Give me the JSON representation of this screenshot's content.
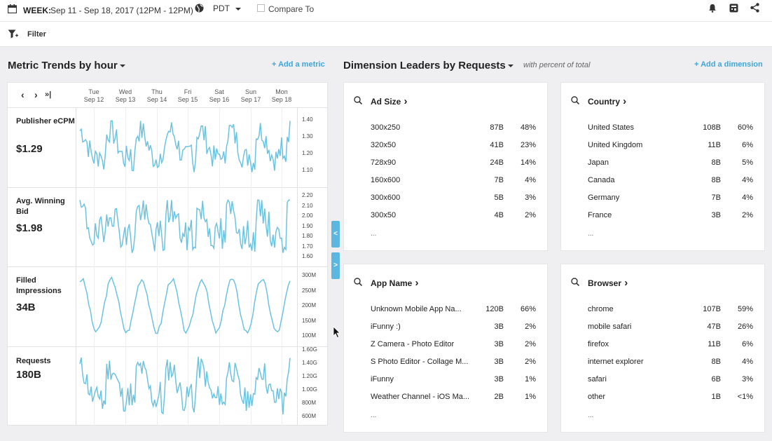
{
  "topbar": {
    "week_label": "WEEK:",
    "week_range": "Sep 11 - Sep 18, 2017 (12PM - 12PM)",
    "timezone": "PDT",
    "compare_label": "Compare To"
  },
  "filterbar": {
    "label": "Filter"
  },
  "metrics": {
    "title": "Metric Trends by",
    "granularity": "hour",
    "add_label": "+ Add a metric",
    "days": [
      {
        "dow": "Tue",
        "date": "Sep 12"
      },
      {
        "dow": "Wed",
        "date": "Sep 13"
      },
      {
        "dow": "Thu",
        "date": "Sep 14"
      },
      {
        "dow": "Fri",
        "date": "Sep 15"
      },
      {
        "dow": "Sat",
        "date": "Sep 16"
      },
      {
        "dow": "Sun",
        "date": "Sep 17"
      },
      {
        "dow": "Mon",
        "date": "Sep 18"
      }
    ],
    "nav": {
      "prev": "‹",
      "next": "›",
      "last": "»|"
    },
    "rows": [
      {
        "name": "Publisher eCPM",
        "value": "$1.29",
        "ticks": [
          "1.40",
          "1.30",
          "1.20",
          "1.10"
        ]
      },
      {
        "name": "Avg. Winning Bid",
        "value": "$1.98",
        "ticks": [
          "2.20",
          "2.10",
          "2.00",
          "1.90",
          "1.80",
          "1.70",
          "1.60"
        ]
      },
      {
        "name": "Filled Impressions",
        "value": "34B",
        "ticks": [
          "300M",
          "250M",
          "200M",
          "150M",
          "100M"
        ]
      },
      {
        "name": "Requests",
        "value": "180B",
        "ticks": [
          "1.60G",
          "1.40G",
          "1.20G",
          "1.00G",
          "800M",
          "600M"
        ]
      }
    ]
  },
  "dimensions": {
    "title": "Dimension Leaders by",
    "measure": "Requests",
    "subtitle": "with percent of total",
    "add_label": "+ Add a dimension",
    "more": "...",
    "cards": [
      {
        "title": "Ad Size",
        "rows": [
          {
            "name": "300x250",
            "count": "87B",
            "pct": "48%"
          },
          {
            "name": "320x50",
            "count": "41B",
            "pct": "23%"
          },
          {
            "name": "728x90",
            "count": "24B",
            "pct": "14%"
          },
          {
            "name": "160x600",
            "count": "7B",
            "pct": "4%"
          },
          {
            "name": "300x600",
            "count": "5B",
            "pct": "3%"
          },
          {
            "name": "300x50",
            "count": "4B",
            "pct": "2%"
          }
        ]
      },
      {
        "title": "Country",
        "rows": [
          {
            "name": "United States",
            "count": "108B",
            "pct": "60%"
          },
          {
            "name": "United Kingdom",
            "count": "11B",
            "pct": "6%"
          },
          {
            "name": "Japan",
            "count": "8B",
            "pct": "5%"
          },
          {
            "name": "Canada",
            "count": "8B",
            "pct": "4%"
          },
          {
            "name": "Germany",
            "count": "7B",
            "pct": "4%"
          },
          {
            "name": "France",
            "count": "3B",
            "pct": "2%"
          }
        ]
      },
      {
        "title": "App Name",
        "rows": [
          {
            "name": "Unknown Mobile App Na...",
            "count": "120B",
            "pct": "66%"
          },
          {
            "name": "iFunny :)",
            "count": "3B",
            "pct": "2%"
          },
          {
            "name": "Z Camera - Photo Editor",
            "count": "3B",
            "pct": "2%"
          },
          {
            "name": "S Photo Editor - Collage M...",
            "count": "3B",
            "pct": "2%"
          },
          {
            "name": "iFunny",
            "count": "3B",
            "pct": "1%"
          },
          {
            "name": "Weather Channel - iOS Ma...",
            "count": "2B",
            "pct": "1%"
          }
        ]
      },
      {
        "title": "Browser",
        "rows": [
          {
            "name": "chrome",
            "count": "107B",
            "pct": "59%"
          },
          {
            "name": "mobile safari",
            "count": "47B",
            "pct": "26%"
          },
          {
            "name": "firefox",
            "count": "11B",
            "pct": "6%"
          },
          {
            "name": "internet explorer",
            "count": "8B",
            "pct": "4%"
          },
          {
            "name": "safari",
            "count": "6B",
            "pct": "3%"
          },
          {
            "name": "other",
            "count": "1B",
            "pct": "<1%"
          }
        ]
      }
    ]
  },
  "tabs": {
    "collapse_left": "<",
    "collapse_right": ">"
  },
  "colors": {
    "accent": "#3ea6d8",
    "line": "#6cc3e0",
    "tab": "#5bb6e0"
  },
  "icons": [
    "calendar-icon",
    "globe-icon",
    "bell-icon",
    "calculator-icon",
    "share-icon",
    "filter-icon",
    "search-icon"
  ]
}
